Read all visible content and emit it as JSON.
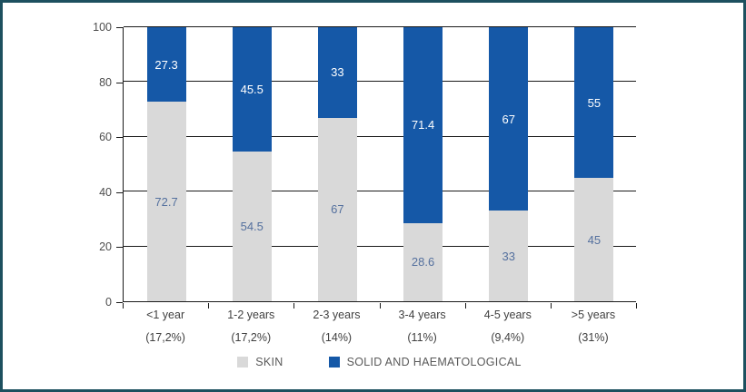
{
  "frame": {
    "border_color": "#1d505f",
    "background": "#ffffff"
  },
  "chart_data": {
    "type": "bar",
    "subtype": "stacked-percentage-column",
    "title": "",
    "xlabel": "",
    "ylabel": "",
    "categories": [
      {
        "label": "<1 year",
        "pct": "(17,2%)"
      },
      {
        "label": "1-2 years",
        "pct": "(17,2%)"
      },
      {
        "label": "2-3 years",
        "pct": "(14%)"
      },
      {
        "label": "3-4 years",
        "pct": "(11%)"
      },
      {
        "label": "4-5 years",
        "pct": "(9,4%)"
      },
      {
        "label": ">5 years",
        "pct": "(31%)"
      }
    ],
    "series": [
      {
        "name": "SKIN",
        "color": "#d9d9d9",
        "label_color": "#54709e",
        "values": [
          72.7,
          54.5,
          67,
          28.6,
          33,
          45
        ]
      },
      {
        "name": "SOLID AND HAEMATOLOGICAL",
        "color": "#1558a7",
        "label_color": "#ffffff",
        "values": [
          27.3,
          45.5,
          33,
          71.4,
          67,
          55
        ]
      }
    ],
    "y_axis": {
      "min": 0,
      "max": 100,
      "step": 20,
      "tick_labels": [
        "0",
        "20",
        "40",
        "60",
        "80",
        "100"
      ]
    },
    "grid": true,
    "gridline_color": "#1a1a1a",
    "legend_position": "bottom"
  }
}
